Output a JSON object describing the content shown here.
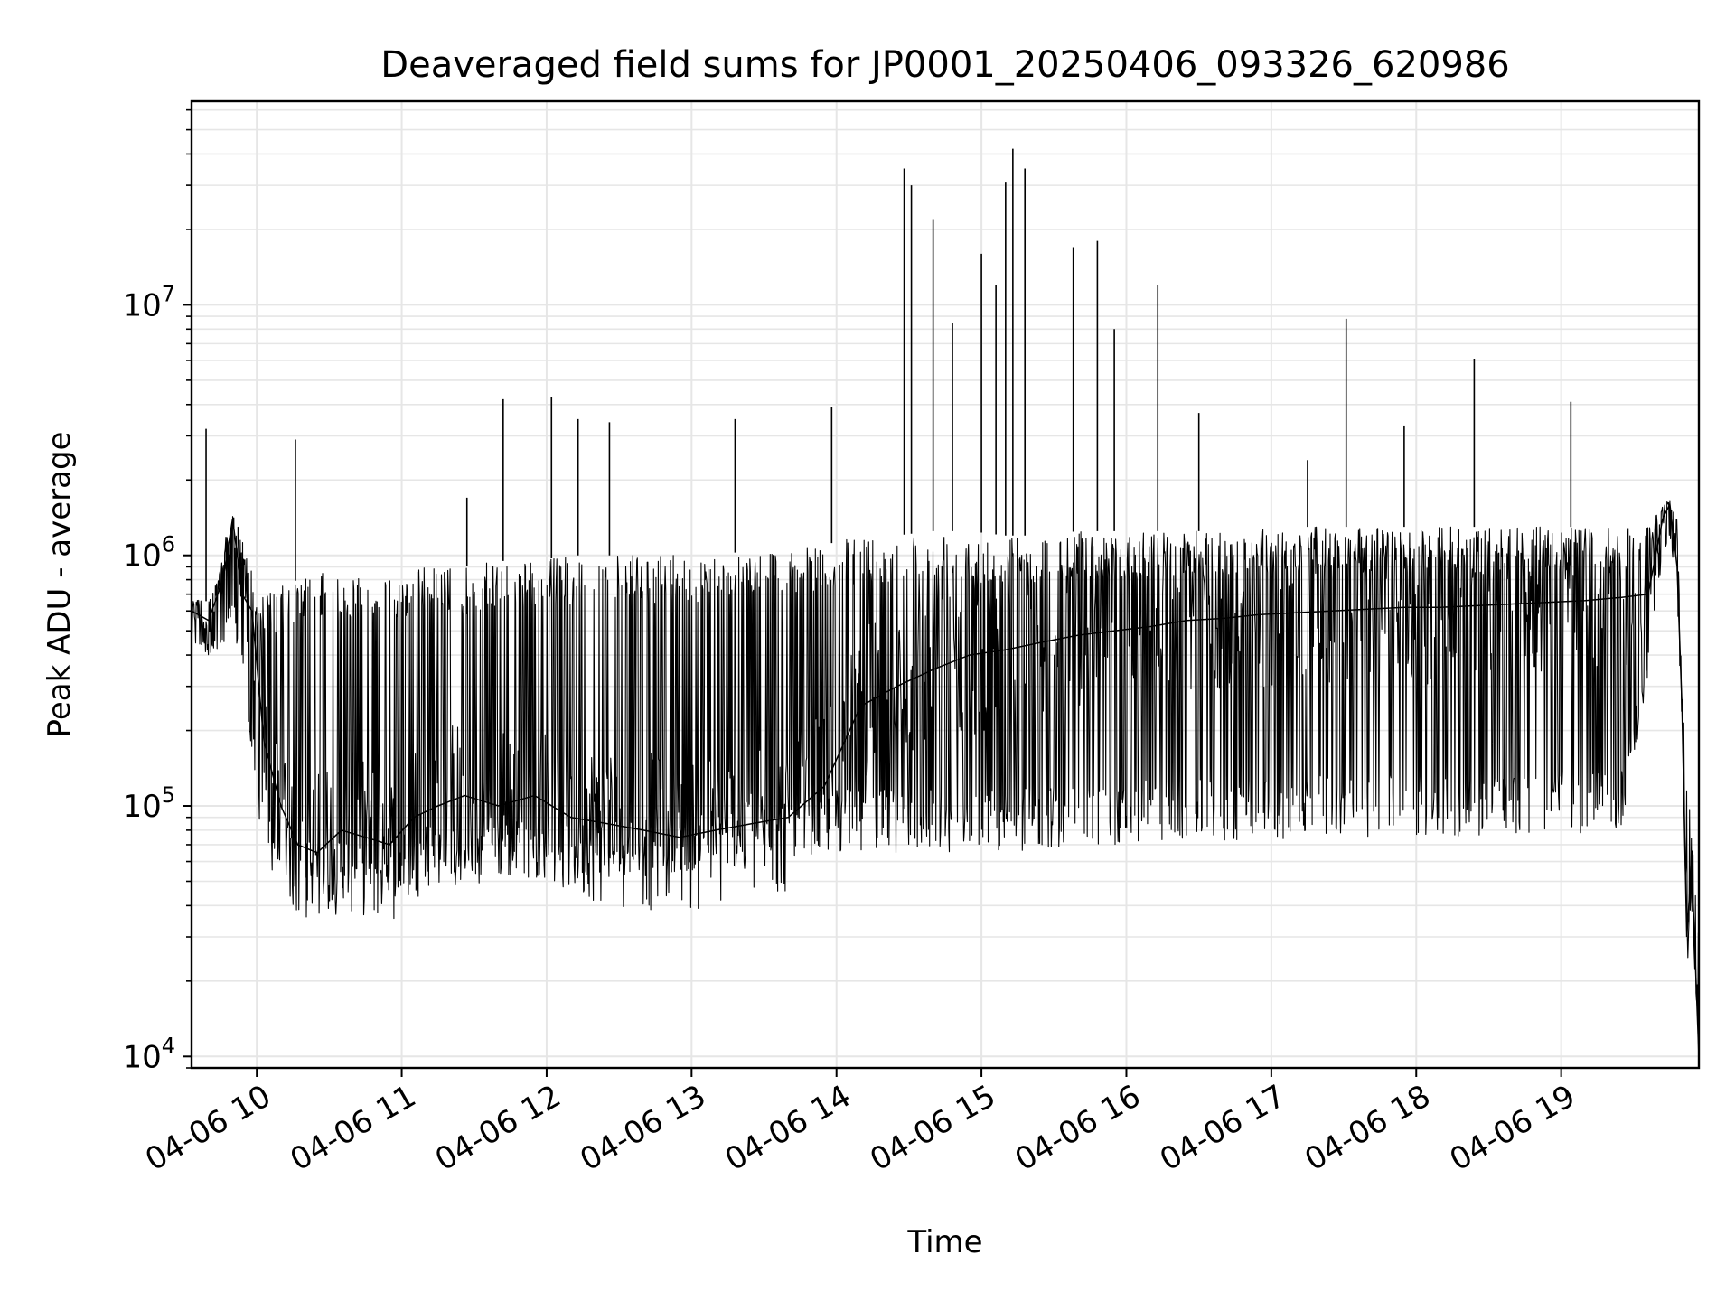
{
  "chart_data": {
    "type": "line",
    "title": "Deaveraged field sums for JP0001_20250406_093326_620986",
    "xlabel": "Time",
    "ylabel": "Peak ADU - average",
    "y_scale": "log",
    "ylim": [
      9000,
      65000000
    ],
    "xlim": [
      "2025-04-06 09:33",
      "2025-04-06 19:57"
    ],
    "grid": true,
    "x_ticks": [
      {
        "value": "2025-04-06 10:00",
        "label": "04-06 10"
      },
      {
        "value": "2025-04-06 11:00",
        "label": "04-06 11"
      },
      {
        "value": "2025-04-06 12:00",
        "label": "04-06 12"
      },
      {
        "value": "2025-04-06 13:00",
        "label": "04-06 13"
      },
      {
        "value": "2025-04-06 14:00",
        "label": "04-06 14"
      },
      {
        "value": "2025-04-06 15:00",
        "label": "04-06 15"
      },
      {
        "value": "2025-04-06 16:00",
        "label": "04-06 16"
      },
      {
        "value": "2025-04-06 17:00",
        "label": "04-06 17"
      },
      {
        "value": "2025-04-06 18:00",
        "label": "04-06 18"
      },
      {
        "value": "2025-04-06 19:00",
        "label": "04-06 19"
      }
    ],
    "y_ticks": [
      {
        "value": 10000,
        "base": "10",
        "exp": "4"
      },
      {
        "value": 100000,
        "base": "10",
        "exp": "5"
      },
      {
        "value": 1000000,
        "base": "10",
        "exp": "6"
      },
      {
        "value": 10000000,
        "base": "10",
        "exp": "7"
      }
    ],
    "series": [
      {
        "color": "#000000",
        "x": [
          "2025-04-06 09:33",
          "2025-04-06 09:40",
          "2025-04-06 09:46",
          "2025-04-06 09:50",
          "2025-04-06 09:54",
          "2025-04-06 09:58",
          "2025-04-06 10:03",
          "2025-04-06 10:10",
          "2025-04-06 10:17",
          "2025-04-06 10:25",
          "2025-04-06 10:35",
          "2025-04-06 10:45",
          "2025-04-06 10:55",
          "2025-04-06 11:05",
          "2025-04-06 11:15",
          "2025-04-06 11:26",
          "2025-04-06 11:40",
          "2025-04-06 11:55",
          "2025-04-06 12:10",
          "2025-04-06 12:25",
          "2025-04-06 12:40",
          "2025-04-06 12:55",
          "2025-04-06 13:10",
          "2025-04-06 13:25",
          "2025-04-06 13:40",
          "2025-04-06 13:55",
          "2025-04-06 14:10",
          "2025-04-06 14:25",
          "2025-04-06 14:40",
          "2025-04-06 14:55",
          "2025-04-06 15:10",
          "2025-04-06 15:25",
          "2025-04-06 15:40",
          "2025-04-06 15:55",
          "2025-04-06 16:10",
          "2025-04-06 16:25",
          "2025-04-06 16:40",
          "2025-04-06 16:55",
          "2025-04-06 17:10",
          "2025-04-06 17:25",
          "2025-04-06 17:40",
          "2025-04-06 17:55",
          "2025-04-06 18:10",
          "2025-04-06 18:25",
          "2025-04-06 18:40",
          "2025-04-06 18:55",
          "2025-04-06 19:10",
          "2025-04-06 19:25",
          "2025-04-06 19:36",
          "2025-04-06 19:42",
          "2025-04-06 19:45",
          "2025-04-06 19:48",
          "2025-04-06 19:50",
          "2025-04-06 19:52",
          "2025-04-06 19:54",
          "2025-04-06 19:57"
        ],
        "values": [
          600000,
          550000,
          800000,
          1400000,
          700000,
          600000,
          180000,
          100000,
          70000,
          65000,
          80000,
          75000,
          70000,
          90000,
          100000,
          110000,
          100000,
          110000,
          90000,
          85000,
          80000,
          75000,
          80000,
          85000,
          90000,
          120000,
          250000,
          300000,
          350000,
          400000,
          420000,
          450000,
          480000,
          500000,
          520000,
          550000,
          560000,
          580000,
          590000,
          600000,
          610000,
          620000,
          620000,
          630000,
          640000,
          650000,
          660000,
          680000,
          700000,
          1400000,
          1600000,
          900000,
          250000,
          30000,
          60000,
          10000
        ],
        "band_low": [
          450000,
          400000,
          400000,
          600000,
          300000,
          150000,
          60000,
          45000,
          40000,
          40000,
          42000,
          45000,
          42000,
          45000,
          48000,
          45000,
          50000,
          52000,
          48000,
          50000,
          52000,
          55000,
          55000,
          58000,
          62000,
          65000,
          65000,
          65000,
          65000,
          65000,
          65000,
          68000,
          68000,
          70000,
          72000,
          72000,
          72000,
          72000,
          75000,
          75000,
          75000,
          75000,
          75000,
          75000,
          75000,
          78000,
          78000,
          80000,
          300000,
          1000000,
          1200000,
          600000,
          200000,
          25000,
          40000,
          9000
        ],
        "band_high": [
          700000,
          650000,
          1000000,
          1500000,
          1200000,
          800000,
          700000,
          750000,
          800000,
          850000,
          850000,
          850000,
          800000,
          900000,
          900000,
          900000,
          950000,
          950000,
          1000000,
          1000000,
          1000000,
          1000000,
          1000000,
          1050000,
          1050000,
          1100000,
          1200000,
          1200000,
          1250000,
          1250000,
          1200000,
          1200000,
          1250000,
          1250000,
          1250000,
          1250000,
          1250000,
          1300000,
          1300000,
          1300000,
          1300000,
          1300000,
          1300000,
          1300000,
          1300000,
          1300000,
          1300000,
          1300000,
          1300000,
          1600000,
          1700000,
          1400000,
          300000,
          140000,
          80000,
          30000
        ]
      }
    ],
    "spikes": [
      {
        "x": "2025-04-06 09:39",
        "y": 3200000
      },
      {
        "x": "2025-04-06 10:16",
        "y": 2900000
      },
      {
        "x": "2025-04-06 11:27",
        "y": 1700000
      },
      {
        "x": "2025-04-06 11:42",
        "y": 4200000
      },
      {
        "x": "2025-04-06 12:02",
        "y": 4300000
      },
      {
        "x": "2025-04-06 12:13",
        "y": 3500000
      },
      {
        "x": "2025-04-06 12:26",
        "y": 3400000
      },
      {
        "x": "2025-04-06 13:18",
        "y": 3500000
      },
      {
        "x": "2025-04-06 13:58",
        "y": 3900000
      },
      {
        "x": "2025-04-06 14:28",
        "y": 35000000
      },
      {
        "x": "2025-04-06 14:31",
        "y": 30000000
      },
      {
        "x": "2025-04-06 14:40",
        "y": 22000000
      },
      {
        "x": "2025-04-06 14:48",
        "y": 8500000
      },
      {
        "x": "2025-04-06 15:00",
        "y": 16000000
      },
      {
        "x": "2025-04-06 15:06",
        "y": 12000000
      },
      {
        "x": "2025-04-06 15:10",
        "y": 31000000
      },
      {
        "x": "2025-04-06 15:13",
        "y": 42000000
      },
      {
        "x": "2025-04-06 15:18",
        "y": 35000000
      },
      {
        "x": "2025-04-06 15:38",
        "y": 17000000
      },
      {
        "x": "2025-04-06 15:48",
        "y": 18000000
      },
      {
        "x": "2025-04-06 15:55",
        "y": 8000000
      },
      {
        "x": "2025-04-06 16:13",
        "y": 12000000
      },
      {
        "x": "2025-04-06 16:30",
        "y": 3700000
      },
      {
        "x": "2025-04-06 17:15",
        "y": 2400000
      },
      {
        "x": "2025-04-06 17:31",
        "y": 8800000
      },
      {
        "x": "2025-04-06 17:55",
        "y": 3300000
      },
      {
        "x": "2025-04-06 18:24",
        "y": 6100000
      },
      {
        "x": "2025-04-06 19:04",
        "y": 4100000
      }
    ]
  }
}
